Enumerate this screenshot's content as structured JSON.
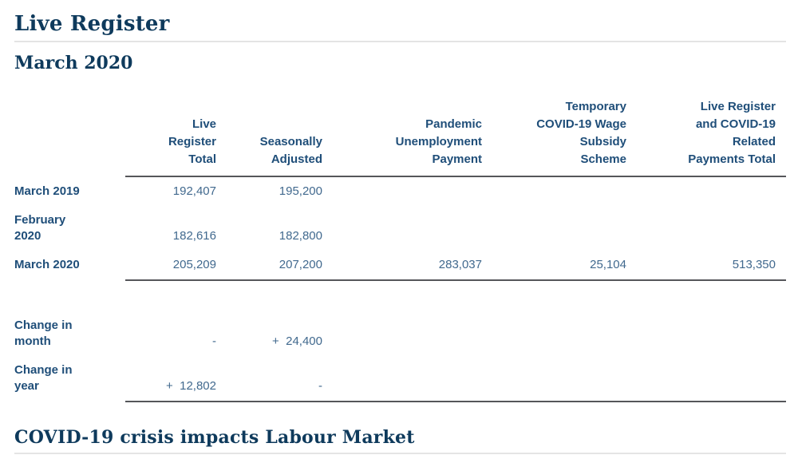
{
  "page": {
    "title": "Live Register",
    "subtitle": "March 2020",
    "section_heading": "COVID-19 crisis impacts Labour Market"
  },
  "table": {
    "columns": [
      "",
      "Live Register Total",
      "Seasonally Adjusted",
      "Pandemic Unemployment Payment",
      "Temporary COVID-19 Wage Subsidy Scheme",
      "Live Register and COVID-19 Related Payments Total"
    ],
    "rows": [
      {
        "label": "March 2019",
        "values": [
          "192,407",
          "195,200",
          "",
          "",
          ""
        ]
      },
      {
        "label": "February 2020",
        "values": [
          "182,616",
          "182,800",
          "",
          "",
          ""
        ]
      },
      {
        "label": "March 2020",
        "values": [
          "205,209",
          "207,200",
          "283,037",
          "25,104",
          "513,350"
        ]
      }
    ],
    "change_rows": [
      {
        "label": "Change in month",
        "values": [
          "-",
          "+  24,400",
          "",
          "",
          ""
        ]
      },
      {
        "label": "Change in year",
        "values": [
          "+  12,802",
          "-",
          "",
          "",
          ""
        ]
      }
    ]
  },
  "colors": {
    "heading_navy": "#0e3a5c",
    "table_header_blue": "#1f4e79",
    "value_blue": "#41698e",
    "rule_dark": "#55565a",
    "rule_light": "#e4e4e4"
  }
}
